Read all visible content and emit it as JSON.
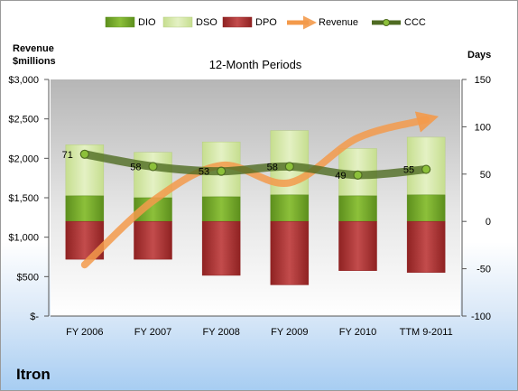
{
  "company": "Itron",
  "chart_data": {
    "type": "bar",
    "title": "12-Month Periods",
    "categories": [
      "FY 2006",
      "FY 2007",
      "FY 2008",
      "FY 2009",
      "FY 2010",
      "TTM 9-2011"
    ],
    "left_axis": {
      "label_line1": "Revenue",
      "label_line2": "$millions",
      "ticks": [
        "$3,000",
        "$2,500",
        "$2,000",
        "$1,500",
        "$1,000",
        "$500",
        "$-"
      ],
      "range": [
        0,
        3000
      ]
    },
    "right_axis": {
      "label": "Days",
      "ticks": [
        "150",
        "100",
        "50",
        "0",
        "-50",
        "-100"
      ],
      "range": [
        -100,
        150
      ]
    },
    "legend": [
      "DIO",
      "DSO",
      "DPO",
      "Revenue",
      "CCC"
    ],
    "series": [
      {
        "name": "DIO",
        "kind": "stacked-bar",
        "axis": "right",
        "values": [
          27,
          25,
          26,
          28,
          27,
          28
        ],
        "color": "#7aab2d"
      },
      {
        "name": "DSO",
        "kind": "stacked-bar",
        "axis": "right",
        "values": [
          54,
          48,
          58,
          68,
          50,
          61
        ],
        "color": "#d8eab0"
      },
      {
        "name": "DPO",
        "kind": "negative-bar",
        "axis": "right",
        "values": [
          -40,
          -40,
          -57,
          -67,
          -52,
          -54
        ],
        "color": "#b23a3a"
      },
      {
        "name": "Revenue",
        "kind": "line",
        "axis": "left",
        "values": [
          650,
          1460,
          1910,
          1690,
          2260,
          2490
        ],
        "color": "#f39a4b"
      },
      {
        "name": "CCC",
        "kind": "line",
        "axis": "right",
        "values": [
          71,
          58,
          53,
          58,
          49,
          55
        ],
        "labels": [
          "71",
          "58",
          "53",
          "58",
          "49",
          "55"
        ],
        "color": "#4f6b22"
      }
    ],
    "grid": false,
    "legend_position": "top"
  }
}
